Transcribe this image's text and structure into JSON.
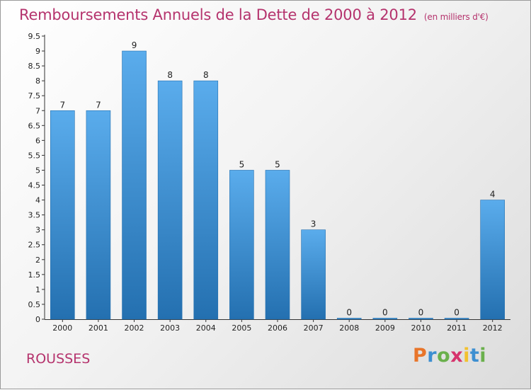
{
  "header": {
    "title": "Remboursements Annuels de la Dette de 2000 à 2012",
    "units": "(en milliers d'€)"
  },
  "footer": {
    "commune": "ROUSSES",
    "logo_letters": [
      "P",
      "r",
      "o",
      "x",
      "i",
      "t",
      "i"
    ],
    "logo_colors": [
      "#e8752a",
      "#3d8fd1",
      "#6ab04c",
      "#d6336c",
      "#f2c12e",
      "#3d8fd1",
      "#6ab04c"
    ]
  },
  "chart_data": {
    "type": "bar",
    "categories": [
      "2000",
      "2001",
      "2002",
      "2003",
      "2004",
      "2005",
      "2006",
      "2007",
      "2008",
      "2009",
      "2010",
      "2011",
      "2012"
    ],
    "values": [
      7,
      7,
      9,
      8,
      8,
      5,
      5,
      3,
      0,
      0,
      0,
      0,
      4
    ],
    "data_labels": [
      "7",
      "7",
      "9",
      "8",
      "8",
      "5",
      "5",
      "3",
      "0",
      "0",
      "0",
      "0",
      "4"
    ],
    "y_ticks": [
      "0",
      "0.5",
      "1",
      "1.5",
      "2",
      "2.5",
      "3",
      "3.5",
      "4",
      "4.5",
      "5",
      "5.5",
      "6",
      "6.5",
      "7",
      "7.5",
      "8",
      "8.5",
      "9",
      "9.5"
    ],
    "ylim": [
      0,
      9.5
    ],
    "grid": false,
    "bar_color": "#3a8fd6",
    "bar_color_light": "#5aacec",
    "bar_color_dark": "#2470b0",
    "title": "Remboursements Annuels de la Dette de 2000 à 2012",
    "xlabel": "",
    "ylabel": ""
  }
}
